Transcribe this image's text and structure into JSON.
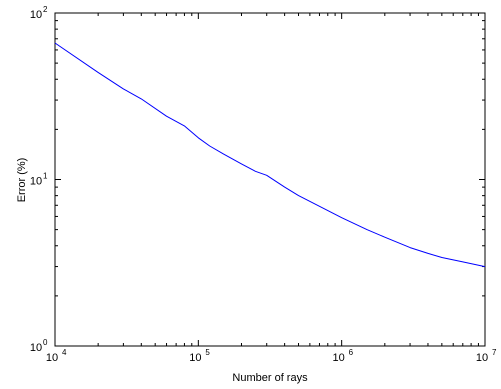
{
  "chart_data": {
    "type": "line",
    "title": "",
    "xlabel": "Number of rays",
    "ylabel": "Error (%)",
    "x_scale": "log",
    "y_scale": "log",
    "xlim": [
      10000,
      10000000
    ],
    "ylim": [
      1,
      100
    ],
    "grid": false,
    "legend": "none",
    "x_ticks": [
      {
        "value": 10000,
        "base": "10",
        "exp": "4"
      },
      {
        "value": 100000,
        "base": "10",
        "exp": "5"
      },
      {
        "value": 1000000,
        "base": "10",
        "exp": "6"
      },
      {
        "value": 10000000,
        "base": "10",
        "exp": "7"
      }
    ],
    "y_ticks": [
      {
        "value": 1,
        "base": "10",
        "exp": "0"
      },
      {
        "value": 10,
        "base": "10",
        "exp": "1"
      },
      {
        "value": 100,
        "base": "10",
        "exp": "2"
      }
    ],
    "series": [
      {
        "color": "#0000ff",
        "x": [
          10000,
          20000,
          30000,
          40000,
          60000,
          80000,
          100000,
          120000,
          150000,
          200000,
          250000,
          300000,
          400000,
          500000,
          700000,
          1000000,
          1500000,
          2000000,
          3000000,
          4000000,
          5000000,
          7000000,
          10000000
        ],
        "y": [
          66,
          44,
          35,
          30.5,
          24,
          21,
          17.8,
          15.9,
          14.2,
          12.4,
          11.2,
          10.6,
          9.0,
          8.0,
          6.9,
          5.9,
          5.0,
          4.5,
          3.9,
          3.6,
          3.4,
          3.2,
          3.0
        ]
      }
    ]
  }
}
